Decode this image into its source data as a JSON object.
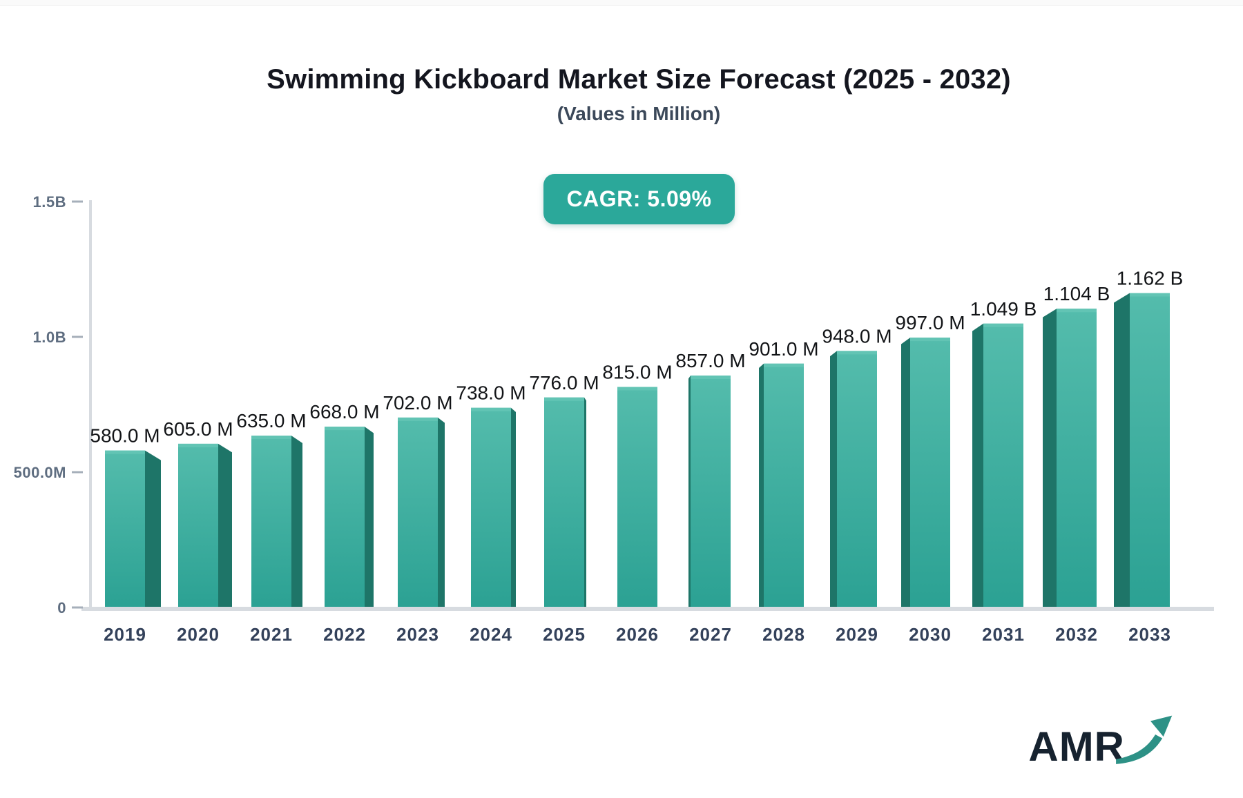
{
  "header": {
    "title": "Swimming Kickboard Market Size Forecast (2025 - 2032)",
    "subtitle": "(Values in Million)",
    "cagr_label": "CAGR: 5.09%",
    "badge_color": "#2BA89A"
  },
  "logo": {
    "text": "AMR",
    "arrow_icon": "growth-arrow-icon",
    "text_color": "#16222F",
    "arrow_color": "#2D9186"
  },
  "chart_data": {
    "type": "bar",
    "title": "Swimming Kickboard Market Size Forecast (2025 - 2032)",
    "subtitle": "(Values in Million)",
    "categories": [
      "2019",
      "2020",
      "2021",
      "2022",
      "2023",
      "2024",
      "2025",
      "2026",
      "2027",
      "2028",
      "2029",
      "2030",
      "2031",
      "2032",
      "2033"
    ],
    "values_millions": [
      580,
      605,
      635,
      668,
      702,
      738,
      776,
      815,
      857,
      901,
      948,
      997,
      1049,
      1104,
      1162
    ],
    "value_labels": [
      "580.0 M",
      "605.0 M",
      "635.0 M",
      "668.0 M",
      "702.0 M",
      "738.0 M",
      "776.0 M",
      "815.0 M",
      "857.0 M",
      "901.0 M",
      "948.0 M",
      "997.0 M",
      "1.049 B",
      "1.104 B",
      "1.162 B"
    ],
    "y_ticks": [
      {
        "label": "0",
        "value": 0
      },
      {
        "label": "500.0M",
        "value": 500
      },
      {
        "label": "1.0B",
        "value": 1000
      },
      {
        "label": "1.5B",
        "value": 1500
      }
    ],
    "ylim": [
      0,
      1500
    ],
    "xlabel": "",
    "ylabel": "",
    "grid": false,
    "legend": false,
    "style_3d": true,
    "colors": {
      "bar_front_top": "#54BCAC",
      "bar_front_bottom": "#2BA193",
      "bar_side": "#1E7568",
      "bar_top_strip": "#62C4B4",
      "axis_line": "#D7DBE0",
      "tick_dash": "#A6AFBA",
      "x_label": "#33415A",
      "y_label": "#5E6D80",
      "value_label": "#121417"
    }
  }
}
